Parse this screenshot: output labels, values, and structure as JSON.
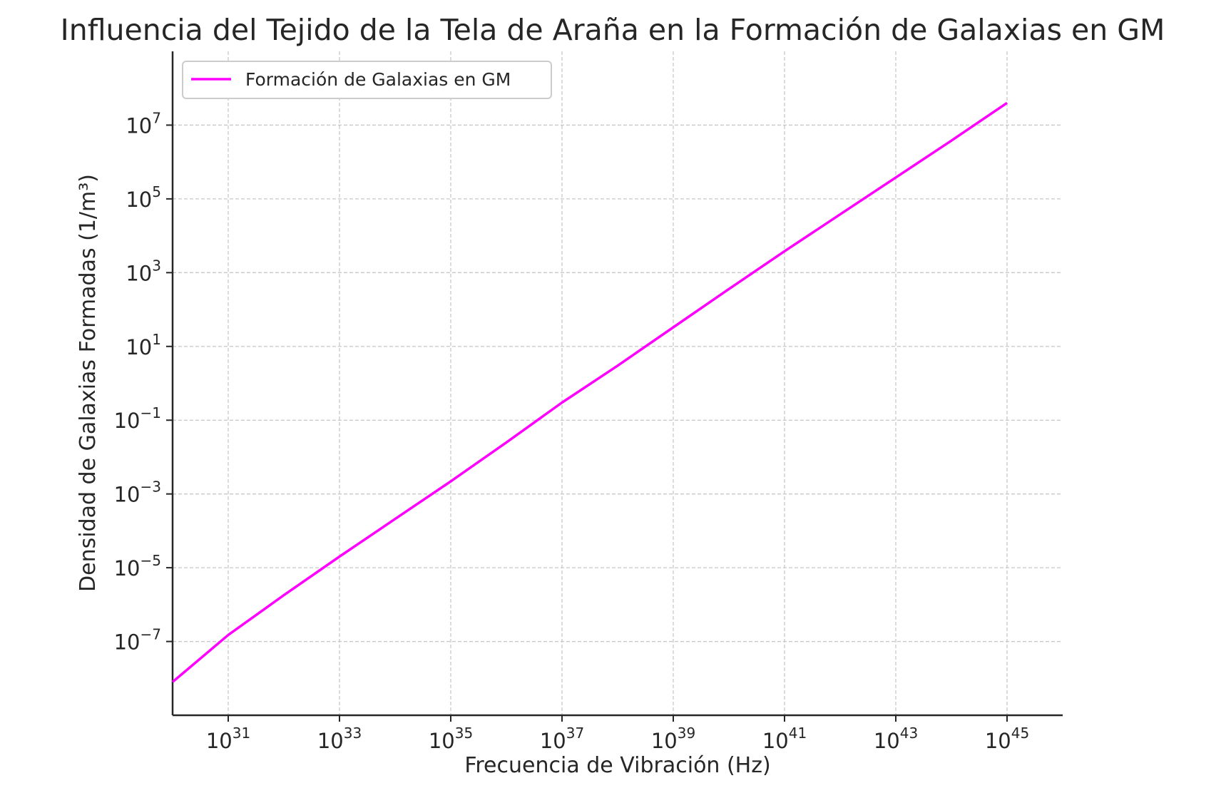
{
  "chart_data": {
    "type": "line",
    "title": "Influencia del Tejido de la Tela de Araña en la Formación de Galaxias en GM",
    "xlabel": "Frecuencia de Vibración (Hz)",
    "ylabel": "Densidad de Galaxias Formadas (1/m³)",
    "xscale": "log",
    "yscale": "log",
    "xlim": [
      1e+30,
      1e+46
    ],
    "ylim": [
      1e-09,
      1000000000.0
    ],
    "grid": true,
    "legend_position": "top-left",
    "x_ticks": [
      {
        "base": "10",
        "exp": "31",
        "value": 1e+31
      },
      {
        "base": "10",
        "exp": "33",
        "value": 1e+33
      },
      {
        "base": "10",
        "exp": "35",
        "value": 1e+35
      },
      {
        "base": "10",
        "exp": "37",
        "value": 1e+37
      },
      {
        "base": "10",
        "exp": "39",
        "value": 1e+39
      },
      {
        "base": "10",
        "exp": "41",
        "value": 1e+41
      },
      {
        "base": "10",
        "exp": "43",
        "value": 1e+43
      },
      {
        "base": "10",
        "exp": "45",
        "value": 1e+45
      }
    ],
    "y_ticks": [
      {
        "base": "10",
        "exp": "7",
        "value": 10000000.0
      },
      {
        "base": "10",
        "exp": "5",
        "value": 100000.0
      },
      {
        "base": "10",
        "exp": "3",
        "value": 1000.0
      },
      {
        "base": "10",
        "exp": "1",
        "value": 10.0
      },
      {
        "base": "10",
        "exp": "−1",
        "value": 0.1
      },
      {
        "base": "10",
        "exp": "−3",
        "value": 0.001
      },
      {
        "base": "10",
        "exp": "−5",
        "value": 1e-05
      },
      {
        "base": "10",
        "exp": "−7",
        "value": 1e-07
      }
    ],
    "series": [
      {
        "name": "Formación de Galaxias en GM",
        "color": "#ff00ff",
        "x": [
          1e+30,
          1e+31,
          1e+32,
          1e+33,
          1e+34,
          1e+35,
          1e+36,
          1e+37,
          1e+38,
          1e+39,
          1e+40,
          1e+41,
          1e+42,
          1e+43,
          1e+44,
          1e+45
        ],
        "y": [
          8e-09,
          1.5e-07,
          1.8e-06,
          2e-05,
          0.00021,
          0.0022,
          0.025,
          0.3,
          3,
          33,
          360,
          3800,
          38000,
          380000,
          3800000,
          40000000.0
        ]
      }
    ]
  },
  "colors": {
    "line": "#ff00ff",
    "grid": "#c8c8c8",
    "axis": "#262626"
  }
}
